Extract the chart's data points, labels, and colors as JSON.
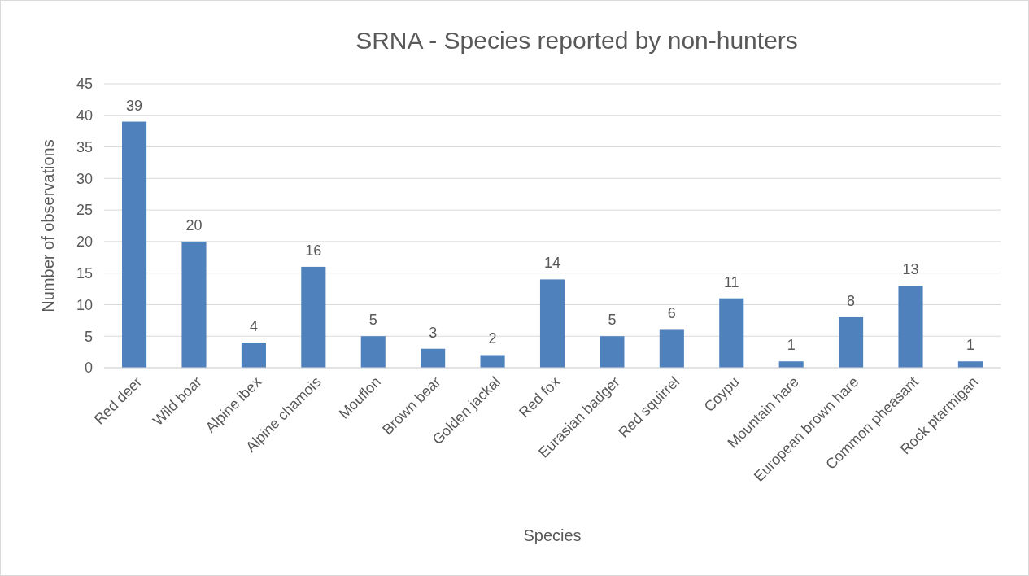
{
  "chart_data": {
    "type": "bar",
    "title": "SRNA - Species reported by non-hunters",
    "xlabel": "Species",
    "ylabel": "Number of observations",
    "categories": [
      "Red deer",
      "Wild boar",
      "Alpine ibex",
      "Alpine chamois",
      "Mouflon",
      "Brown bear",
      "Golden jackal",
      "Red fox",
      "Eurasian badger",
      "Red squirrel",
      "Coypu",
      "Mountain hare",
      "European brown hare",
      "Common pheasant",
      "Rock ptarmigan"
    ],
    "values": [
      39,
      20,
      4,
      16,
      5,
      3,
      2,
      14,
      5,
      6,
      11,
      1,
      8,
      13,
      1
    ],
    "color": "#4f81bd",
    "ylim": [
      0,
      45
    ],
    "yticks": [
      0,
      5,
      10,
      15,
      20,
      25,
      30,
      35,
      40,
      45
    ],
    "grid": "y",
    "data_labels": true
  }
}
